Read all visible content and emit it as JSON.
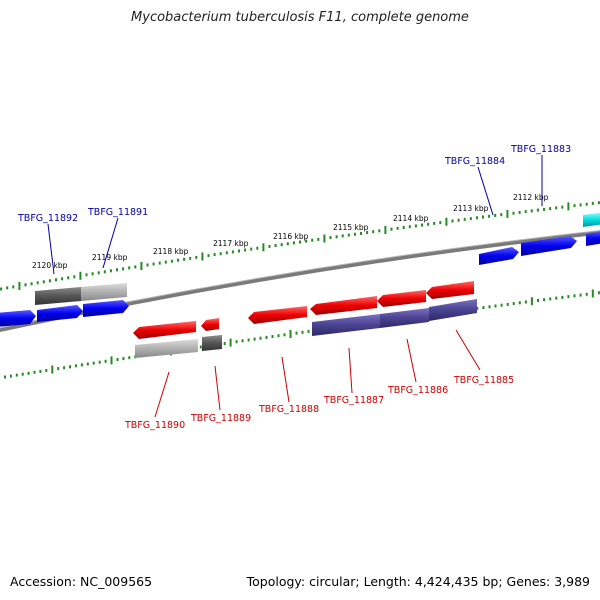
{
  "title": "Mycobacterium tuberculosis F11, complete genome",
  "footer": {
    "accession": "Accession: NC_009565",
    "topology": "Topology: circular; Length: 4,424,435 bp; Genes: 3,989"
  },
  "scale": {
    "ticks": [
      "2120 kbp",
      "2119 kbp",
      "2118 kbp",
      "2117 kbp",
      "2116 kbp",
      "2115 kbp",
      "2114 kbp",
      "2113 kbp",
      "2112 kbp"
    ],
    "tick_color": "#228b22"
  },
  "colors": {
    "backbone": "#808080",
    "forward_gene": "#0000ee",
    "reverse_gene": "#ee0000",
    "forward_label": "#0000aa",
    "reverse_label": "#cc0000",
    "dark_gray": "#555555",
    "light_gray": "#b0b0b0",
    "slate": "#4a4290",
    "cyan": "#00e0e0"
  },
  "gene_labels": {
    "forward": [
      "TBFG_11892",
      "TBFG_11891",
      "TBFG_11884",
      "TBFG_11883"
    ],
    "reverse": [
      "TBFG_11890",
      "TBFG_11889",
      "TBFG_11888",
      "TBFG_11887",
      "TBFG_11886",
      "TBFG_11885"
    ]
  }
}
